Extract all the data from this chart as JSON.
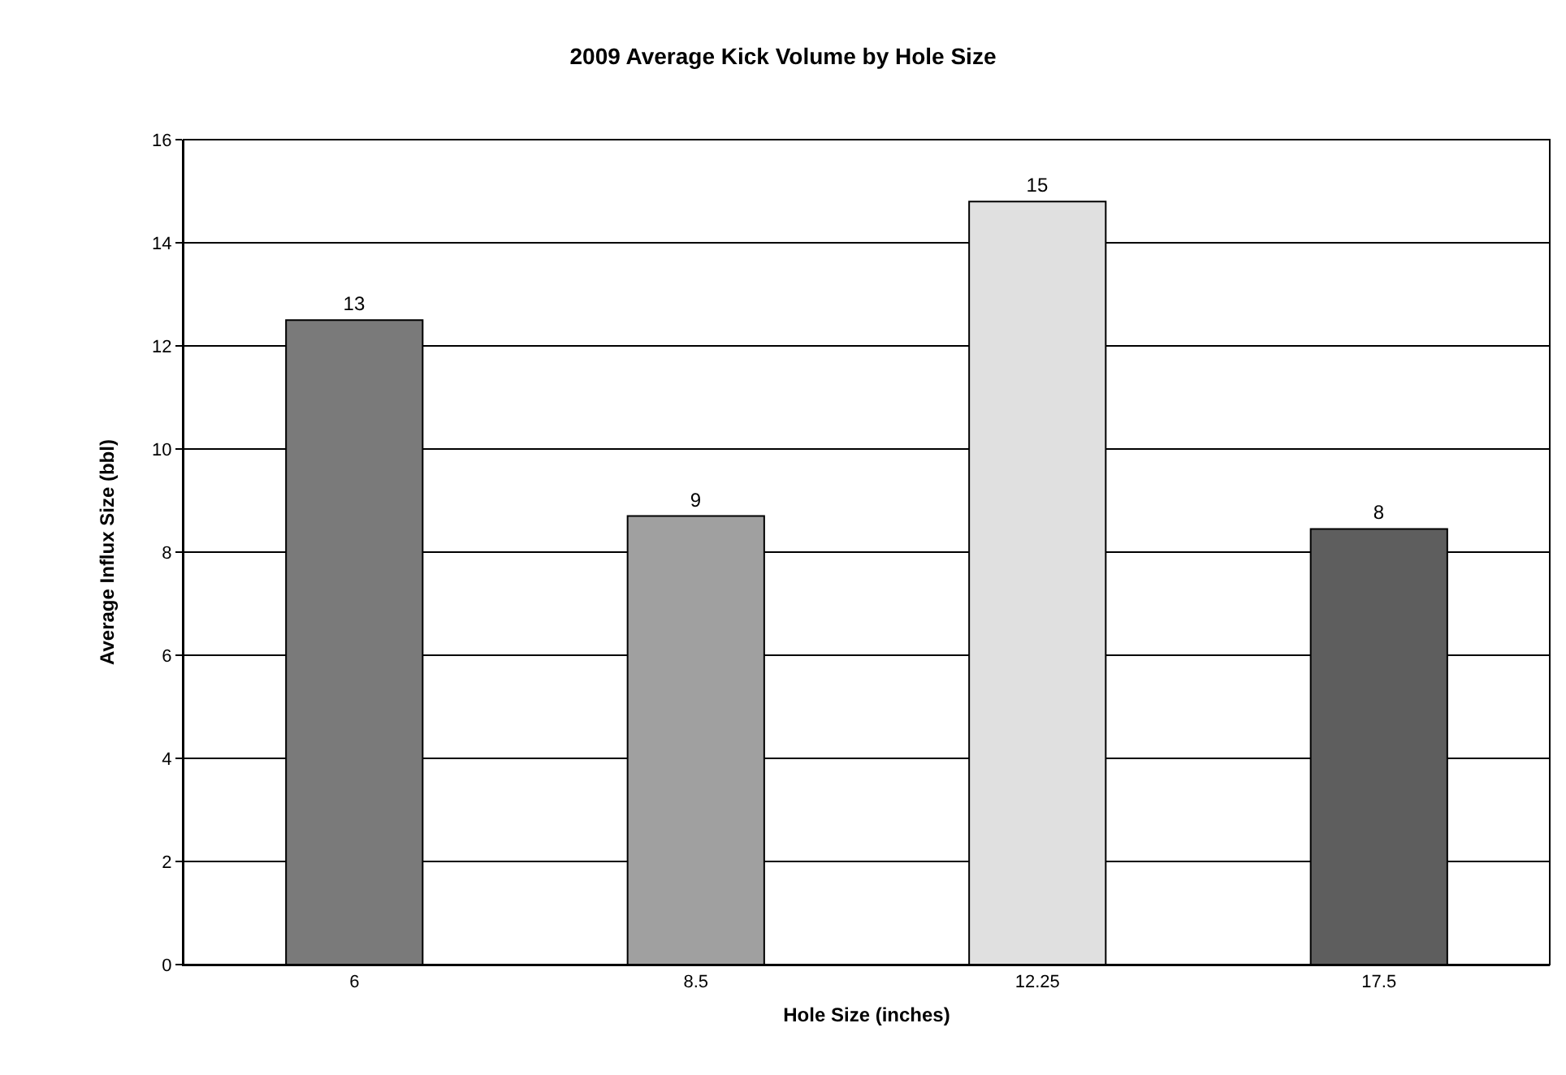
{
  "chart_data": {
    "type": "bar",
    "title": "2009 Average Kick Volume by Hole Size",
    "xlabel": "Hole Size (inches)",
    "ylabel": "Average Influx Size (bbl)",
    "categories": [
      "6",
      "8.5",
      "12.25",
      "17.5"
    ],
    "values": [
      12.5,
      8.7,
      14.8,
      8.45
    ],
    "value_labels": [
      "13",
      "9",
      "15",
      "8"
    ],
    "colors": [
      "#7a7a7a",
      "#a0a0a0",
      "#e0e0e0",
      "#5e5e5e"
    ],
    "ylim": [
      0,
      16
    ],
    "yticks": [
      0,
      2,
      4,
      6,
      8,
      10,
      12,
      14,
      16
    ],
    "grid": "y"
  }
}
